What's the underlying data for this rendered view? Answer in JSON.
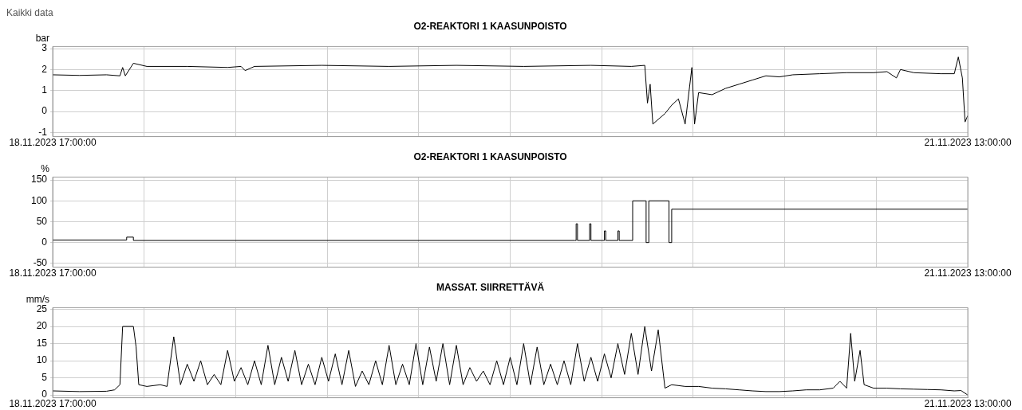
{
  "chart_data": [
    {
      "type": "line",
      "title": "O2-REAKTORI 1 KAASUNPOISTO",
      "ylabel": "bar",
      "annotations": [
        "Kaikki data"
      ],
      "xlim": [
        "2023-11-18T17:00",
        "2023-11-21T13:00"
      ],
      "xticks": [
        {
          "value": "2023-11-18T17:00",
          "label": "18.11.2023 17:00:00"
        },
        {
          "value": "2023-11-18T23:48",
          "label": null
        },
        {
          "value": "2023-11-19T06:36",
          "label": null
        },
        {
          "value": "2023-11-19T13:24",
          "label": null
        },
        {
          "value": "2023-11-19T20:12",
          "label": null
        },
        {
          "value": "2023-11-20T03:00",
          "label": null
        },
        {
          "value": "2023-11-20T09:48",
          "label": null
        },
        {
          "value": "2023-11-20T16:36",
          "label": null
        },
        {
          "value": "2023-11-20T23:24",
          "label": null
        },
        {
          "value": "2023-11-21T06:12",
          "label": null
        },
        {
          "value": "2023-11-21T13:00",
          "label": "21.11.2023 13:00:00"
        }
      ],
      "ylim": [
        -1.2,
        3.1
      ],
      "yticks": [
        -1,
        0,
        1,
        2,
        3
      ],
      "grid": true,
      "legend": false,
      "marker": "none",
      "series": [
        {
          "color": "#000000",
          "x": [
            "2023-11-18T17:00",
            "2023-11-18T19:00",
            "2023-11-18T21:00",
            "2023-11-18T22:00",
            "2023-11-18T22:12",
            "2023-11-18T22:24",
            "2023-11-18T23:00",
            "2023-11-19T00:00",
            "2023-11-19T03:00",
            "2023-11-19T06:00",
            "2023-11-19T07:00",
            "2023-11-19T07:18",
            "2023-11-19T08:00",
            "2023-11-19T13:00",
            "2023-11-19T18:00",
            "2023-11-19T23:00",
            "2023-11-20T04:00",
            "2023-11-20T09:00",
            "2023-11-20T12:00",
            "2023-11-20T13:00",
            "2023-11-20T13:12",
            "2023-11-20T13:24",
            "2023-11-20T13:36",
            "2023-11-20T14:30",
            "2023-11-20T15:00",
            "2023-11-20T15:30",
            "2023-11-20T16:00",
            "2023-11-20T16:30",
            "2023-11-20T16:42",
            "2023-11-20T17:00",
            "2023-11-20T18:00",
            "2023-11-20T19:00",
            "2023-11-20T20:00",
            "2023-11-20T21:00",
            "2023-11-20T22:00",
            "2023-11-20T23:00",
            "2023-11-21T00:00",
            "2023-11-21T02:00",
            "2023-11-21T04:00",
            "2023-11-21T06:00",
            "2023-11-21T07:00",
            "2023-11-21T07:42",
            "2023-11-21T08:00",
            "2023-11-21T09:00",
            "2023-11-21T11:00",
            "2023-11-21T12:00",
            "2023-11-21T12:18",
            "2023-11-21T12:36",
            "2023-11-21T12:48",
            "2023-11-21T13:00"
          ],
          "values": [
            1.75,
            1.72,
            1.75,
            1.7,
            2.1,
            1.7,
            2.3,
            2.15,
            2.15,
            2.1,
            2.15,
            1.95,
            2.15,
            2.2,
            2.15,
            2.2,
            2.15,
            2.2,
            2.15,
            2.2,
            0.4,
            1.3,
            -0.6,
            -0.1,
            0.3,
            0.6,
            -0.6,
            2.1,
            -0.6,
            0.9,
            0.8,
            1.1,
            1.3,
            1.5,
            1.7,
            1.65,
            1.75,
            1.8,
            1.85,
            1.85,
            1.9,
            1.6,
            2.0,
            1.85,
            1.8,
            1.8,
            2.6,
            1.6,
            -0.5,
            -0.2
          ]
        }
      ]
    },
    {
      "type": "step",
      "title": "O2-REAKTORI 1 KAASUNPOISTO",
      "ylabel": "%",
      "xlim": [
        "2023-11-18T17:00",
        "2023-11-21T13:00"
      ],
      "xticks": [
        {
          "value": "2023-11-18T17:00",
          "label": "18.11.2023 17:00:00"
        },
        {
          "value": "2023-11-18T23:48",
          "label": null
        },
        {
          "value": "2023-11-19T06:36",
          "label": null
        },
        {
          "value": "2023-11-19T13:24",
          "label": null
        },
        {
          "value": "2023-11-19T20:12",
          "label": null
        },
        {
          "value": "2023-11-20T03:00",
          "label": null
        },
        {
          "value": "2023-11-20T09:48",
          "label": null
        },
        {
          "value": "2023-11-20T16:36",
          "label": null
        },
        {
          "value": "2023-11-20T23:24",
          "label": null
        },
        {
          "value": "2023-11-21T06:12",
          "label": null
        },
        {
          "value": "2023-11-21T13:00",
          "label": "21.11.2023 13:00:00"
        }
      ],
      "ylim": [
        -59,
        157
      ],
      "yticks": [
        -50,
        0,
        50,
        100,
        150
      ],
      "grid": true,
      "legend": false,
      "marker": "none",
      "series": [
        {
          "color": "#000000",
          "x": [
            "2023-11-18T17:00",
            "2023-11-18T22:30",
            "2023-11-18T23:00",
            "2023-11-20T07:48",
            "2023-11-20T07:54",
            "2023-11-20T08:00",
            "2023-11-20T08:54",
            "2023-11-20T09:00",
            "2023-11-20T10:00",
            "2023-11-20T10:06",
            "2023-11-20T11:00",
            "2023-11-20T11:06",
            "2023-11-20T12:06",
            "2023-11-20T13:06",
            "2023-11-20T13:18",
            "2023-11-20T14:48",
            "2023-11-20T15:00",
            "2023-11-21T13:00"
          ],
          "values": [
            6,
            13,
            5,
            5,
            45,
            5,
            45,
            5,
            28,
            5,
            28,
            5,
            100,
            0,
            100,
            0,
            80,
            80
          ]
        }
      ]
    },
    {
      "type": "line",
      "title": "MASSAT. SIIRRETTÄVÄ",
      "ylabel": "mm/s",
      "xlim": [
        "2023-11-18T17:00",
        "2023-11-21T13:00"
      ],
      "xticks": [
        {
          "value": "2023-11-18T17:00",
          "label": "18.11.2023 17:00:00"
        },
        {
          "value": "2023-11-18T23:48",
          "label": null
        },
        {
          "value": "2023-11-19T06:36",
          "label": null
        },
        {
          "value": "2023-11-19T13:24",
          "label": null
        },
        {
          "value": "2023-11-19T20:12",
          "label": null
        },
        {
          "value": "2023-11-20T03:00",
          "label": null
        },
        {
          "value": "2023-11-20T09:48",
          "label": null
        },
        {
          "value": "2023-11-20T16:36",
          "label": null
        },
        {
          "value": "2023-11-20T23:24",
          "label": null
        },
        {
          "value": "2023-11-21T06:12",
          "label": null
        },
        {
          "value": "2023-11-21T13:00",
          "label": "21.11.2023 13:00:00"
        }
      ],
      "ylim": [
        -0.8,
        25.5
      ],
      "yticks": [
        0,
        5,
        10,
        15,
        20,
        25
      ],
      "grid": true,
      "legend": false,
      "marker": "none",
      "series": [
        {
          "color": "#000000",
          "x": [
            "2023-11-18T17:00",
            "2023-11-18T19:00",
            "2023-11-18T21:00",
            "2023-11-18T21:36",
            "2023-11-18T22:00",
            "2023-11-18T22:12",
            "2023-11-18T23:00",
            "2023-11-18T23:12",
            "2023-11-18T23:24",
            "2023-11-19T00:00",
            "2023-11-19T01:00",
            "2023-11-19T01:30",
            "2023-11-19T02:00",
            "2023-11-19T02:30",
            "2023-11-19T03:00",
            "2023-11-19T03:30",
            "2023-11-19T04:00",
            "2023-11-19T04:30",
            "2023-11-19T05:00",
            "2023-11-19T05:30",
            "2023-11-19T06:00",
            "2023-11-19T06:30",
            "2023-11-19T07:00",
            "2023-11-19T07:30",
            "2023-11-19T08:00",
            "2023-11-19T08:30",
            "2023-11-19T09:00",
            "2023-11-19T09:30",
            "2023-11-19T10:00",
            "2023-11-19T10:30",
            "2023-11-19T11:00",
            "2023-11-19T11:30",
            "2023-11-19T12:00",
            "2023-11-19T12:30",
            "2023-11-19T13:00",
            "2023-11-19T13:30",
            "2023-11-19T14:00",
            "2023-11-19T14:30",
            "2023-11-19T15:00",
            "2023-11-19T15:30",
            "2023-11-19T16:00",
            "2023-11-19T16:30",
            "2023-11-19T17:00",
            "2023-11-19T17:30",
            "2023-11-19T18:00",
            "2023-11-19T18:30",
            "2023-11-19T19:00",
            "2023-11-19T19:30",
            "2023-11-19T20:00",
            "2023-11-19T20:30",
            "2023-11-19T21:00",
            "2023-11-19T21:30",
            "2023-11-19T22:00",
            "2023-11-19T22:30",
            "2023-11-19T23:00",
            "2023-11-19T23:30",
            "2023-11-20T00:00",
            "2023-11-20T00:30",
            "2023-11-20T01:00",
            "2023-11-20T01:30",
            "2023-11-20T02:00",
            "2023-11-20T02:30",
            "2023-11-20T03:00",
            "2023-11-20T03:30",
            "2023-11-20T04:00",
            "2023-11-20T04:30",
            "2023-11-20T05:00",
            "2023-11-20T05:30",
            "2023-11-20T06:00",
            "2023-11-20T06:30",
            "2023-11-20T07:00",
            "2023-11-20T07:30",
            "2023-11-20T08:00",
            "2023-11-20T08:30",
            "2023-11-20T09:00",
            "2023-11-20T09:30",
            "2023-11-20T10:00",
            "2023-11-20T10:30",
            "2023-11-20T11:00",
            "2023-11-20T11:30",
            "2023-11-20T12:00",
            "2023-11-20T12:30",
            "2023-11-20T13:00",
            "2023-11-20T13:30",
            "2023-11-20T14:00",
            "2023-11-20T14:30",
            "2023-11-20T15:00",
            "2023-11-20T16:00",
            "2023-11-20T17:00",
            "2023-11-20T18:00",
            "2023-11-20T19:00",
            "2023-11-20T20:00",
            "2023-11-20T21:00",
            "2023-11-20T22:00",
            "2023-11-20T23:00",
            "2023-11-21T00:00",
            "2023-11-21T01:00",
            "2023-11-21T02:00",
            "2023-11-21T03:00",
            "2023-11-21T03:30",
            "2023-11-21T04:00",
            "2023-11-21T04:18",
            "2023-11-21T04:36",
            "2023-11-21T05:00",
            "2023-11-21T05:18",
            "2023-11-21T06:00",
            "2023-11-21T07:00",
            "2023-11-21T08:00",
            "2023-11-21T09:00",
            "2023-11-21T10:00",
            "2023-11-21T11:00",
            "2023-11-21T12:00",
            "2023-11-21T12:30",
            "2023-11-21T13:00"
          ],
          "values": [
            1.2,
            1.0,
            1.1,
            1.5,
            3,
            20,
            20,
            14,
            3,
            2.5,
            3,
            2.5,
            17,
            3,
            9,
            4,
            10,
            3,
            6,
            3,
            13,
            4,
            8,
            3,
            10,
            3,
            14.5,
            3,
            11,
            4,
            13,
            3,
            9,
            3,
            11,
            4,
            12,
            3,
            13,
            2.5,
            7,
            3,
            10,
            3,
            14.5,
            3,
            9,
            3,
            15,
            3,
            14,
            4,
            15,
            3,
            14.5,
            3,
            8,
            4,
            7,
            3,
            10,
            3,
            11,
            3,
            15,
            3,
            14,
            3,
            9,
            3,
            10,
            3,
            15,
            4,
            11,
            4,
            12,
            5,
            15,
            6,
            18,
            6,
            20,
            7,
            19,
            2,
            3,
            2.5,
            2.5,
            2,
            1.8,
            1.5,
            1.2,
            1,
            1,
            1.2,
            1.5,
            1.5,
            2,
            4,
            2,
            18,
            4,
            13,
            3,
            2,
            2,
            1.8,
            1.7,
            1.6,
            1.5,
            1.2,
            1.3,
            0
          ]
        }
      ]
    }
  ]
}
